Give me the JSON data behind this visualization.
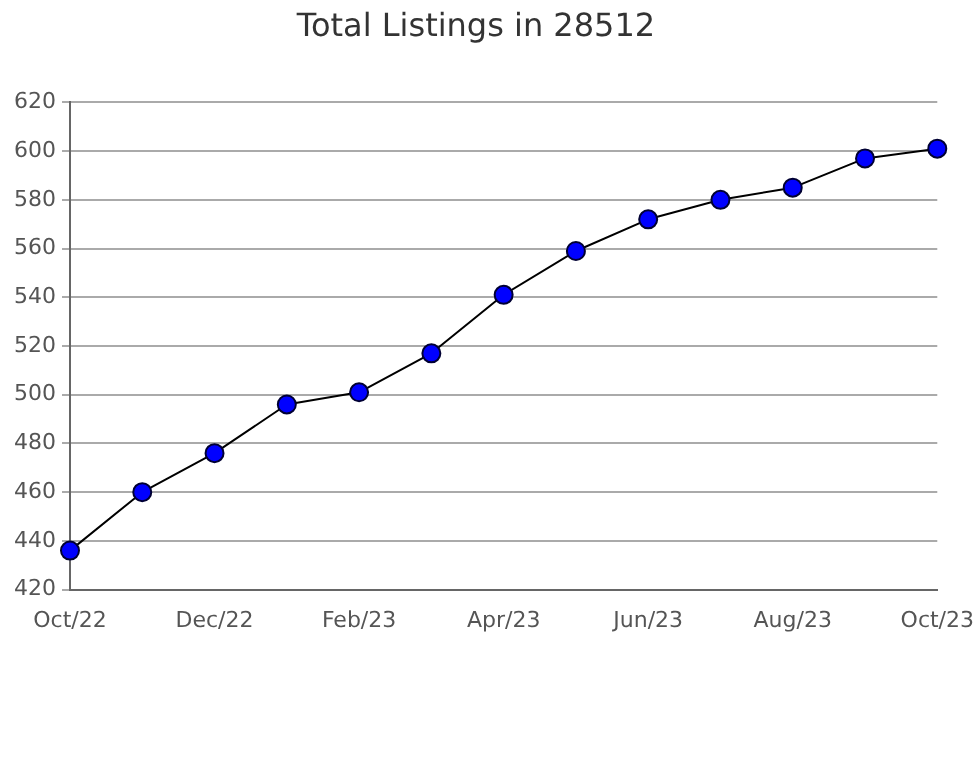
{
  "chart_data": {
    "type": "line",
    "title": "Total Listings in 28512",
    "categories": [
      "Oct/22",
      null,
      "Dec/22",
      null,
      "Feb/23",
      null,
      "Apr/23",
      null,
      "Jun/23",
      null,
      "Aug/23",
      null,
      "Oct/23"
    ],
    "series": [
      {
        "color": "#0000ff",
        "values": [
          436,
          460,
          476,
          496,
          501,
          517,
          541,
          559,
          572,
          580,
          585,
          597,
          601
        ]
      }
    ],
    "ylim": [
      420,
      620
    ],
    "yticks": [
      420,
      440,
      460,
      480,
      500,
      520,
      540,
      560,
      580,
      600,
      620
    ],
    "grid": "y",
    "marker": "circle",
    "line_style": "solid",
    "legend": false
  }
}
